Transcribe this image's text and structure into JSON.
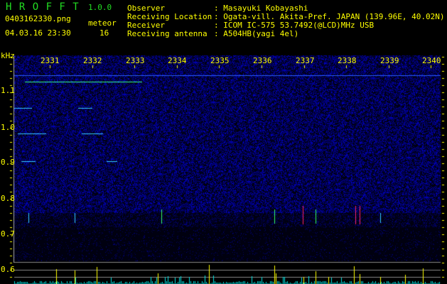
{
  "header": {
    "app_name": "H R O F F T",
    "version": "1.0.0",
    "filename": "0403162330.png",
    "datetime": "04.03.16 23:30",
    "meteor_label": "meteor",
    "meteor_count": "16"
  },
  "info": [
    {
      "label": "Observer",
      "value": ": Masayuki Kobayashi"
    },
    {
      "label": "Receiving Location",
      "value": ": Ogata-vill. Akita-Pref. JAPAN (139.96E, 40.02N)"
    },
    {
      "label": "Receiver",
      "value": ": ICOM IC-575 53.7492(@LCD)MHz USB"
    },
    {
      "label": "Receiving antenna",
      "value": ": A504HB(yagi 4el)"
    }
  ],
  "axis": {
    "y_unit": "kHz",
    "y_ticks": [
      "1.1",
      "1.0",
      "0.9",
      "0.8",
      "0.7",
      "0.6"
    ],
    "x_ticks": [
      "2331",
      "2332",
      "2333",
      "2334",
      "2335",
      "2336",
      "2337",
      "2338",
      "2339",
      "2340"
    ]
  },
  "colors": {
    "text": "#ffff00",
    "logo": "#22dd22",
    "noise": "#1a1aa0",
    "bar_cyan": "#00e0e0",
    "bar_yellow": "#ffff00"
  }
}
